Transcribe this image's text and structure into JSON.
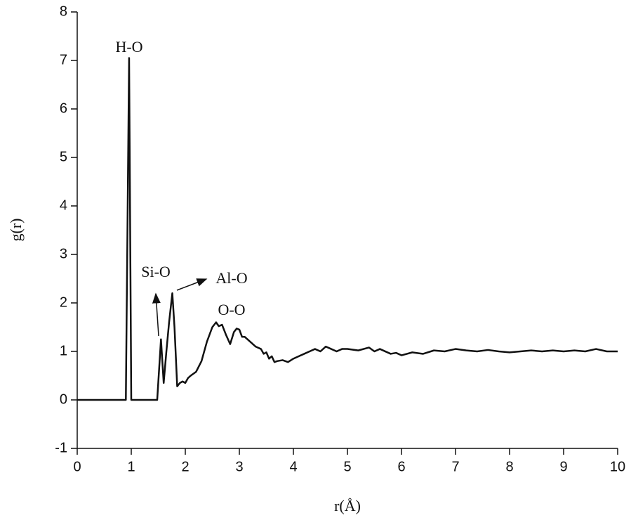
{
  "chart_data": {
    "type": "line",
    "x_label": "r(Å)",
    "y_label": "g(r)",
    "annotations": [
      "H-O",
      "Si-O",
      "Al-O",
      "O-O"
    ],
    "xlim": [
      0,
      10
    ],
    "ylim": [
      -1,
      8
    ],
    "xticks": [
      0,
      1,
      2,
      3,
      4,
      5,
      6,
      7,
      8,
      9,
      10
    ],
    "yticks": [
      -1,
      0,
      1,
      2,
      3,
      4,
      5,
      6,
      7,
      8
    ],
    "grid": false,
    "x": [
      0,
      0.9,
      0.96,
      1.0,
      1.48,
      1.55,
      1.6,
      1.65,
      1.7,
      1.76,
      1.8,
      1.85,
      1.9,
      1.95,
      2.0,
      2.05,
      2.1,
      2.2,
      2.3,
      2.4,
      2.5,
      2.57,
      2.62,
      2.68,
      2.75,
      2.83,
      2.9,
      2.95,
      3.0,
      3.05,
      3.1,
      3.2,
      3.3,
      3.4,
      3.45,
      3.5,
      3.55,
      3.6,
      3.65,
      3.7,
      3.8,
      3.9,
      4.0,
      4.1,
      4.2,
      4.3,
      4.4,
      4.5,
      4.6,
      4.7,
      4.8,
      4.9,
      5.0,
      5.2,
      5.4,
      5.5,
      5.6,
      5.8,
      5.9,
      6.0,
      6.2,
      6.4,
      6.6,
      6.8,
      7.0,
      7.2,
      7.4,
      7.6,
      7.8,
      8.0,
      8.2,
      8.4,
      8.6,
      8.8,
      9.0,
      9.2,
      9.4,
      9.6,
      9.8,
      10.0
    ],
    "series": [
      {
        "color": "#111111",
        "values": [
          0,
          0,
          7.05,
          0,
          0,
          1.25,
          0.35,
          1.0,
          1.6,
          2.2,
          1.5,
          0.28,
          0.35,
          0.38,
          0.35,
          0.45,
          0.5,
          0.58,
          0.8,
          1.2,
          1.5,
          1.6,
          1.52,
          1.55,
          1.35,
          1.15,
          1.4,
          1.47,
          1.45,
          1.3,
          1.3,
          1.2,
          1.1,
          1.05,
          0.95,
          0.98,
          0.85,
          0.9,
          0.78,
          0.8,
          0.82,
          0.78,
          0.85,
          0.9,
          0.95,
          1.0,
          1.05,
          1.0,
          1.1,
          1.05,
          1.0,
          1.05,
          1.05,
          1.02,
          1.08,
          1.0,
          1.05,
          0.95,
          0.97,
          0.92,
          0.98,
          0.95,
          1.02,
          1.0,
          1.05,
          1.02,
          1.0,
          1.03,
          1.0,
          0.98,
          1.0,
          1.02,
          1.0,
          1.02,
          1.0,
          1.02,
          1.0,
          1.05,
          1.0,
          1.0
        ]
      }
    ]
  }
}
